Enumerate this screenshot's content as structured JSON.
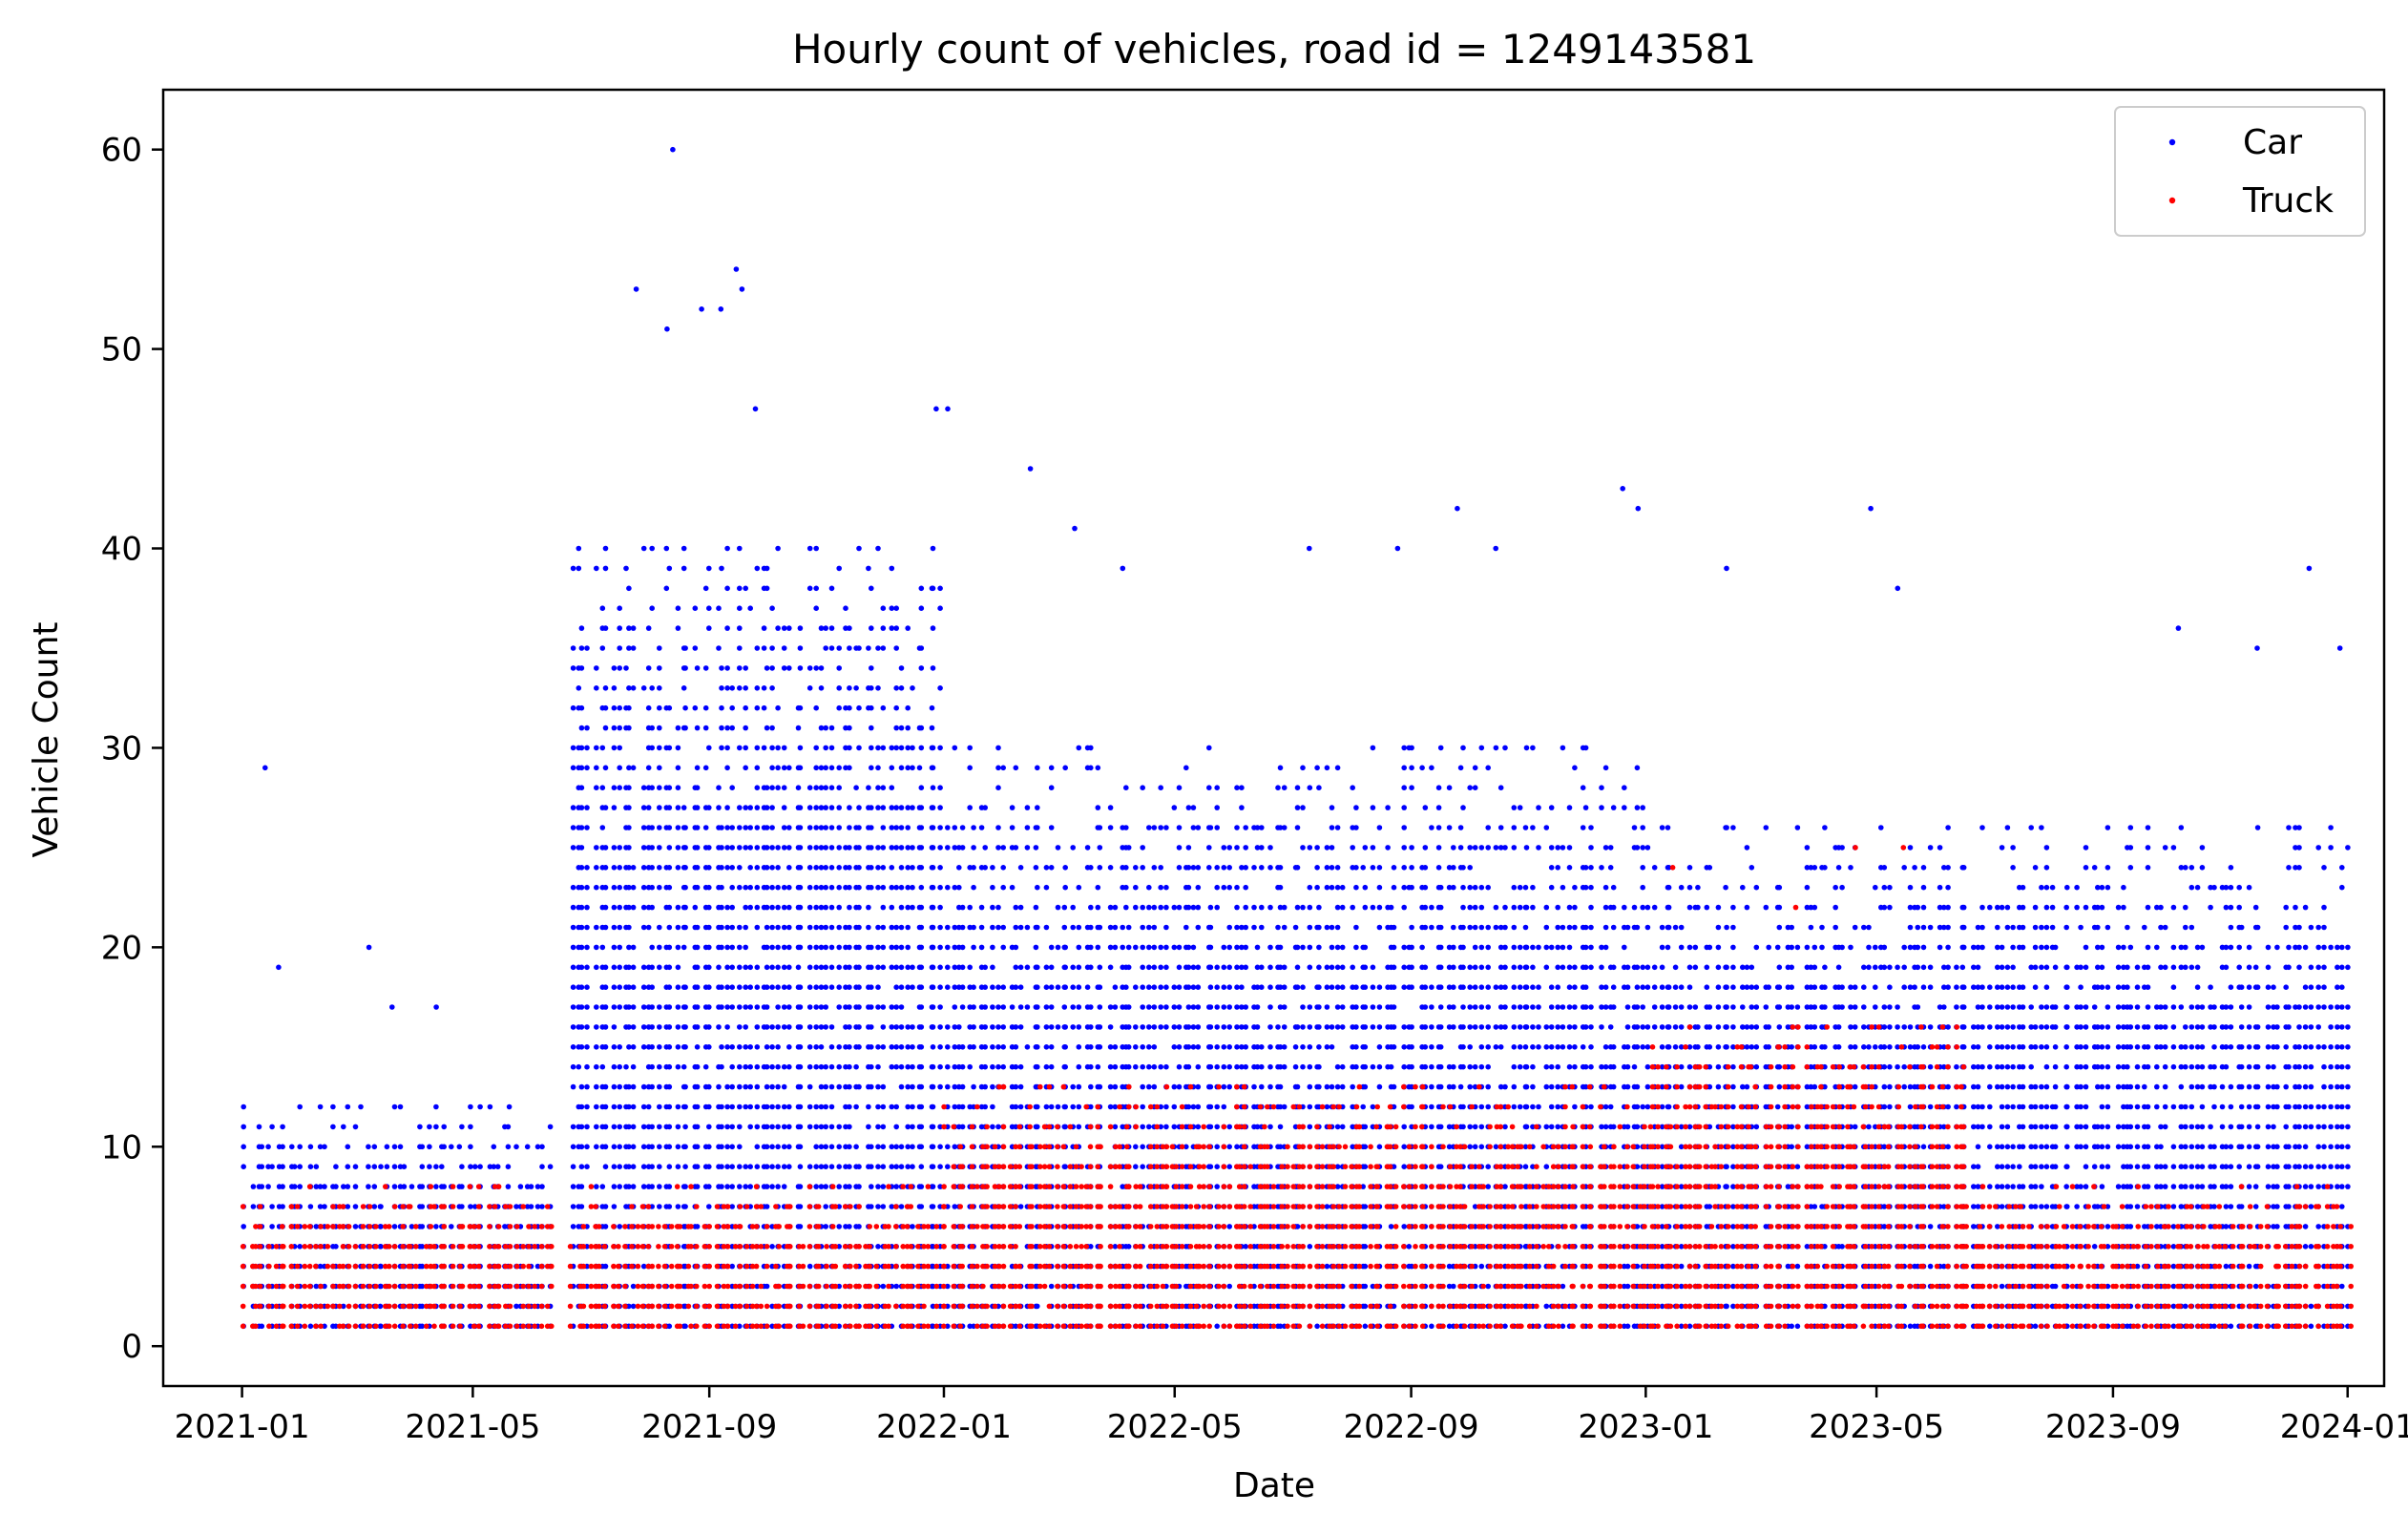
{
  "chart_data": {
    "type": "scatter",
    "title": "Hourly count of vehicles, road id = 1249143581",
    "xlabel": "Date",
    "ylabel": "Vehicle Count",
    "xlim": [
      "2020-11-21",
      "2024-01-20"
    ],
    "ylim": [
      -2,
      63
    ],
    "x_ticks": [
      "2021-01",
      "2021-05",
      "2021-09",
      "2022-01",
      "2022-05",
      "2022-09",
      "2023-01",
      "2023-05",
      "2023-09",
      "2024-01"
    ],
    "y_ticks": [
      0,
      10,
      20,
      30,
      40,
      50,
      60
    ],
    "grid": false,
    "legend": {
      "position": "top-right"
    },
    "data_range": {
      "start": "2021-01-01",
      "end": "2023-12-31"
    },
    "series": [
      {
        "name": "Car",
        "color": "#0000ff",
        "marker": "dot",
        "note_points_sampled": true,
        "bands": [
          {
            "from": "2021-01-01",
            "to": "2021-06-10",
            "min": 1,
            "max": 12
          },
          {
            "from": "2021-06-20",
            "to": "2021-12-31",
            "min": 1,
            "max": 40
          },
          {
            "from": "2022-01-01",
            "to": "2022-12-31",
            "min": 1,
            "max": 30
          },
          {
            "from": "2023-01-01",
            "to": "2023-12-31",
            "min": 1,
            "max": 26
          }
        ],
        "highlights": [
          {
            "x": "2021-01-13",
            "y": 29
          },
          {
            "x": "2021-01-20",
            "y": 19
          },
          {
            "x": "2021-03-08",
            "y": 20
          },
          {
            "x": "2021-03-20",
            "y": 17
          },
          {
            "x": "2021-04-12",
            "y": 17
          },
          {
            "x": "2021-05-20",
            "y": 12
          },
          {
            "x": "2021-07-25",
            "y": 53
          },
          {
            "x": "2021-08-13",
            "y": 60
          },
          {
            "x": "2021-08-10",
            "y": 51
          },
          {
            "x": "2021-08-28",
            "y": 52
          },
          {
            "x": "2021-09-07",
            "y": 52
          },
          {
            "x": "2021-09-15",
            "y": 54
          },
          {
            "x": "2021-09-18",
            "y": 53
          },
          {
            "x": "2021-09-25",
            "y": 47
          },
          {
            "x": "2021-12-28",
            "y": 47
          },
          {
            "x": "2022-01-03",
            "y": 47
          },
          {
            "x": "2022-02-15",
            "y": 44
          },
          {
            "x": "2022-03-10",
            "y": 41
          },
          {
            "x": "2022-04-04",
            "y": 39
          },
          {
            "x": "2022-07-10",
            "y": 40
          },
          {
            "x": "2022-08-25",
            "y": 40
          },
          {
            "x": "2022-09-25",
            "y": 42
          },
          {
            "x": "2022-10-15",
            "y": 40
          },
          {
            "x": "2022-12-20",
            "y": 43
          },
          {
            "x": "2022-12-28",
            "y": 42
          },
          {
            "x": "2023-02-12",
            "y": 39
          },
          {
            "x": "2023-04-28",
            "y": 42
          },
          {
            "x": "2023-05-12",
            "y": 38
          },
          {
            "x": "2023-10-05",
            "y": 36
          },
          {
            "x": "2023-11-15",
            "y": 35
          },
          {
            "x": "2023-12-12",
            "y": 39
          },
          {
            "x": "2023-12-28",
            "y": 35
          }
        ]
      },
      {
        "name": "Truck",
        "color": "#ff0000",
        "marker": "dot",
        "note_points_sampled": true,
        "bands": [
          {
            "from": "2021-01-01",
            "to": "2021-06-10",
            "min": 1,
            "max": 8
          },
          {
            "from": "2021-06-20",
            "to": "2021-12-31",
            "min": 1,
            "max": 8
          },
          {
            "from": "2022-01-01",
            "to": "2022-12-31",
            "min": 1,
            "max": 13
          },
          {
            "from": "2023-01-01",
            "to": "2023-06-15",
            "min": 1,
            "max": 16
          },
          {
            "from": "2023-06-16",
            "to": "2023-12-31",
            "min": 1,
            "max": 8
          }
        ],
        "highlights": [
          {
            "x": "2023-01-15",
            "y": 24
          },
          {
            "x": "2023-03-20",
            "y": 22
          },
          {
            "x": "2023-04-20",
            "y": 25
          },
          {
            "x": "2023-05-15",
            "y": 25
          }
        ]
      }
    ]
  }
}
